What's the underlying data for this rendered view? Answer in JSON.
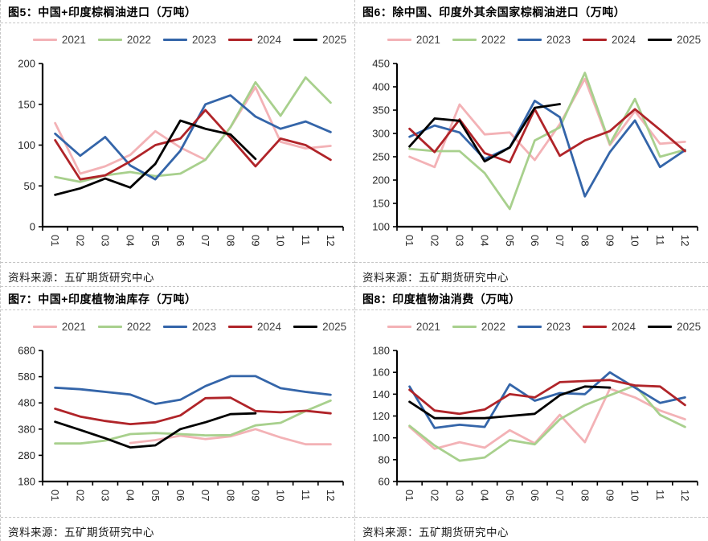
{
  "source_label": "资料来源：五矿期货研究中心",
  "legend_colors": {
    "2021": "#f3b2b6",
    "2022": "#a8d08d",
    "2023": "#3465a9",
    "2024": "#b02429",
    "2025": "#000000"
  },
  "chart_data": [
    {
      "type": "line",
      "title": "图5：中国+印度棕榈油进口（万吨）",
      "legend_position": "top",
      "grid": false,
      "x": [
        "01",
        "02",
        "03",
        "04",
        "05",
        "06",
        "07",
        "08",
        "09",
        "10",
        "11",
        "12"
      ],
      "ylim": [
        0,
        200
      ],
      "yticks": [
        0,
        50,
        100,
        150,
        200
      ],
      "series": [
        {
          "name": "2021",
          "values": [
            127,
            65,
            74,
            88,
            117,
            97,
            82,
            122,
            171,
            104,
            96,
            99
          ]
        },
        {
          "name": "2022",
          "values": [
            61,
            55,
            63,
            67,
            62,
            65,
            82,
            122,
            177,
            136,
            183,
            152
          ]
        },
        {
          "name": "2023",
          "values": [
            114,
            87,
            110,
            75,
            58,
            93,
            150,
            161,
            135,
            120,
            129,
            116
          ]
        },
        {
          "name": "2024",
          "values": [
            106,
            58,
            63,
            80,
            100,
            108,
            143,
            109,
            74,
            108,
            100,
            82
          ]
        },
        {
          "name": "2025",
          "values": [
            39,
            47,
            59,
            48,
            77,
            130,
            120,
            113,
            83,
            null,
            null,
            null
          ]
        }
      ]
    },
    {
      "type": "line",
      "title": "图6：除中国、印度外其余国家棕榈油进口（万吨）",
      "legend_position": "top",
      "grid": false,
      "x": [
        "01",
        "02",
        "03",
        "04",
        "05",
        "06",
        "07",
        "08",
        "09",
        "10",
        "11",
        "12"
      ],
      "ylim": [
        100,
        450
      ],
      "yticks": [
        100,
        150,
        200,
        250,
        300,
        350,
        400,
        450
      ],
      "series": [
        {
          "name": "2021",
          "values": [
            250,
            228,
            362,
            298,
            302,
            243,
            320,
            417,
            275,
            348,
            278,
            282
          ]
        },
        {
          "name": "2022",
          "values": [
            267,
            262,
            262,
            215,
            138,
            285,
            313,
            430,
            278,
            374,
            250,
            265
          ]
        },
        {
          "name": "2023",
          "values": [
            293,
            317,
            302,
            245,
            270,
            370,
            335,
            165,
            260,
            328,
            228,
            264
          ]
        },
        {
          "name": "2024",
          "values": [
            310,
            260,
            330,
            258,
            238,
            352,
            252,
            285,
            305,
            352,
            308,
            262
          ]
        },
        {
          "name": "2025",
          "values": [
            272,
            332,
            327,
            240,
            270,
            355,
            363,
            null,
            null,
            null,
            null,
            null
          ]
        }
      ]
    },
    {
      "type": "line",
      "title": "图7：中国+印度植物油库存（万吨）",
      "legend_position": "top",
      "grid": false,
      "x": [
        "01",
        "02",
        "03",
        "04",
        "05",
        "06",
        "07",
        "08",
        "09",
        "10",
        "11",
        "12"
      ],
      "ylim": [
        180,
        680
      ],
      "yticks": [
        180,
        280,
        380,
        480,
        580,
        680
      ],
      "series": [
        {
          "name": "2021",
          "values": [
            null,
            null,
            null,
            327,
            338,
            355,
            342,
            352,
            380,
            348,
            322,
            322
          ]
        },
        {
          "name": "2022",
          "values": [
            325,
            325,
            336,
            361,
            365,
            361,
            356,
            357,
            394,
            404,
            449,
            489
          ]
        },
        {
          "name": "2023",
          "values": [
            538,
            532,
            522,
            512,
            476,
            492,
            544,
            582,
            582,
            536,
            522,
            511
          ]
        },
        {
          "name": "2024",
          "values": [
            458,
            428,
            411,
            399,
            406,
            432,
            498,
            500,
            449,
            444,
            450,
            440
          ]
        },
        {
          "name": "2025",
          "values": [
            408,
            377,
            345,
            310,
            318,
            380,
            406,
            437,
            440,
            null,
            null,
            null
          ]
        }
      ]
    },
    {
      "type": "line",
      "title": "图8：印度植物油消费（万吨）",
      "legend_position": "top",
      "grid": false,
      "x": [
        "01",
        "02",
        "03",
        "04",
        "05",
        "06",
        "07",
        "08",
        "09",
        "10",
        "11",
        "12"
      ],
      "ylim": [
        60,
        180
      ],
      "yticks": [
        60,
        80,
        100,
        120,
        140,
        160,
        180
      ],
      "series": [
        {
          "name": "2021",
          "values": [
            110,
            90,
            96,
            91,
            107,
            95,
            121,
            96,
            145,
            137,
            125,
            117
          ]
        },
        {
          "name": "2022",
          "values": [
            111,
            93,
            79,
            82,
            98,
            94,
            117,
            130,
            139,
            148,
            121,
            110
          ]
        },
        {
          "name": "2023",
          "values": [
            147,
            109,
            112,
            110,
            149,
            134,
            141,
            140,
            160,
            146,
            132,
            137
          ]
        },
        {
          "name": "2024",
          "values": [
            144,
            125,
            122,
            126,
            140,
            137,
            151,
            152,
            153,
            148,
            147,
            130
          ]
        },
        {
          "name": "2025",
          "values": [
            133,
            118,
            118,
            118,
            120,
            122,
            139,
            147,
            146,
            null,
            null,
            null
          ]
        }
      ]
    }
  ]
}
